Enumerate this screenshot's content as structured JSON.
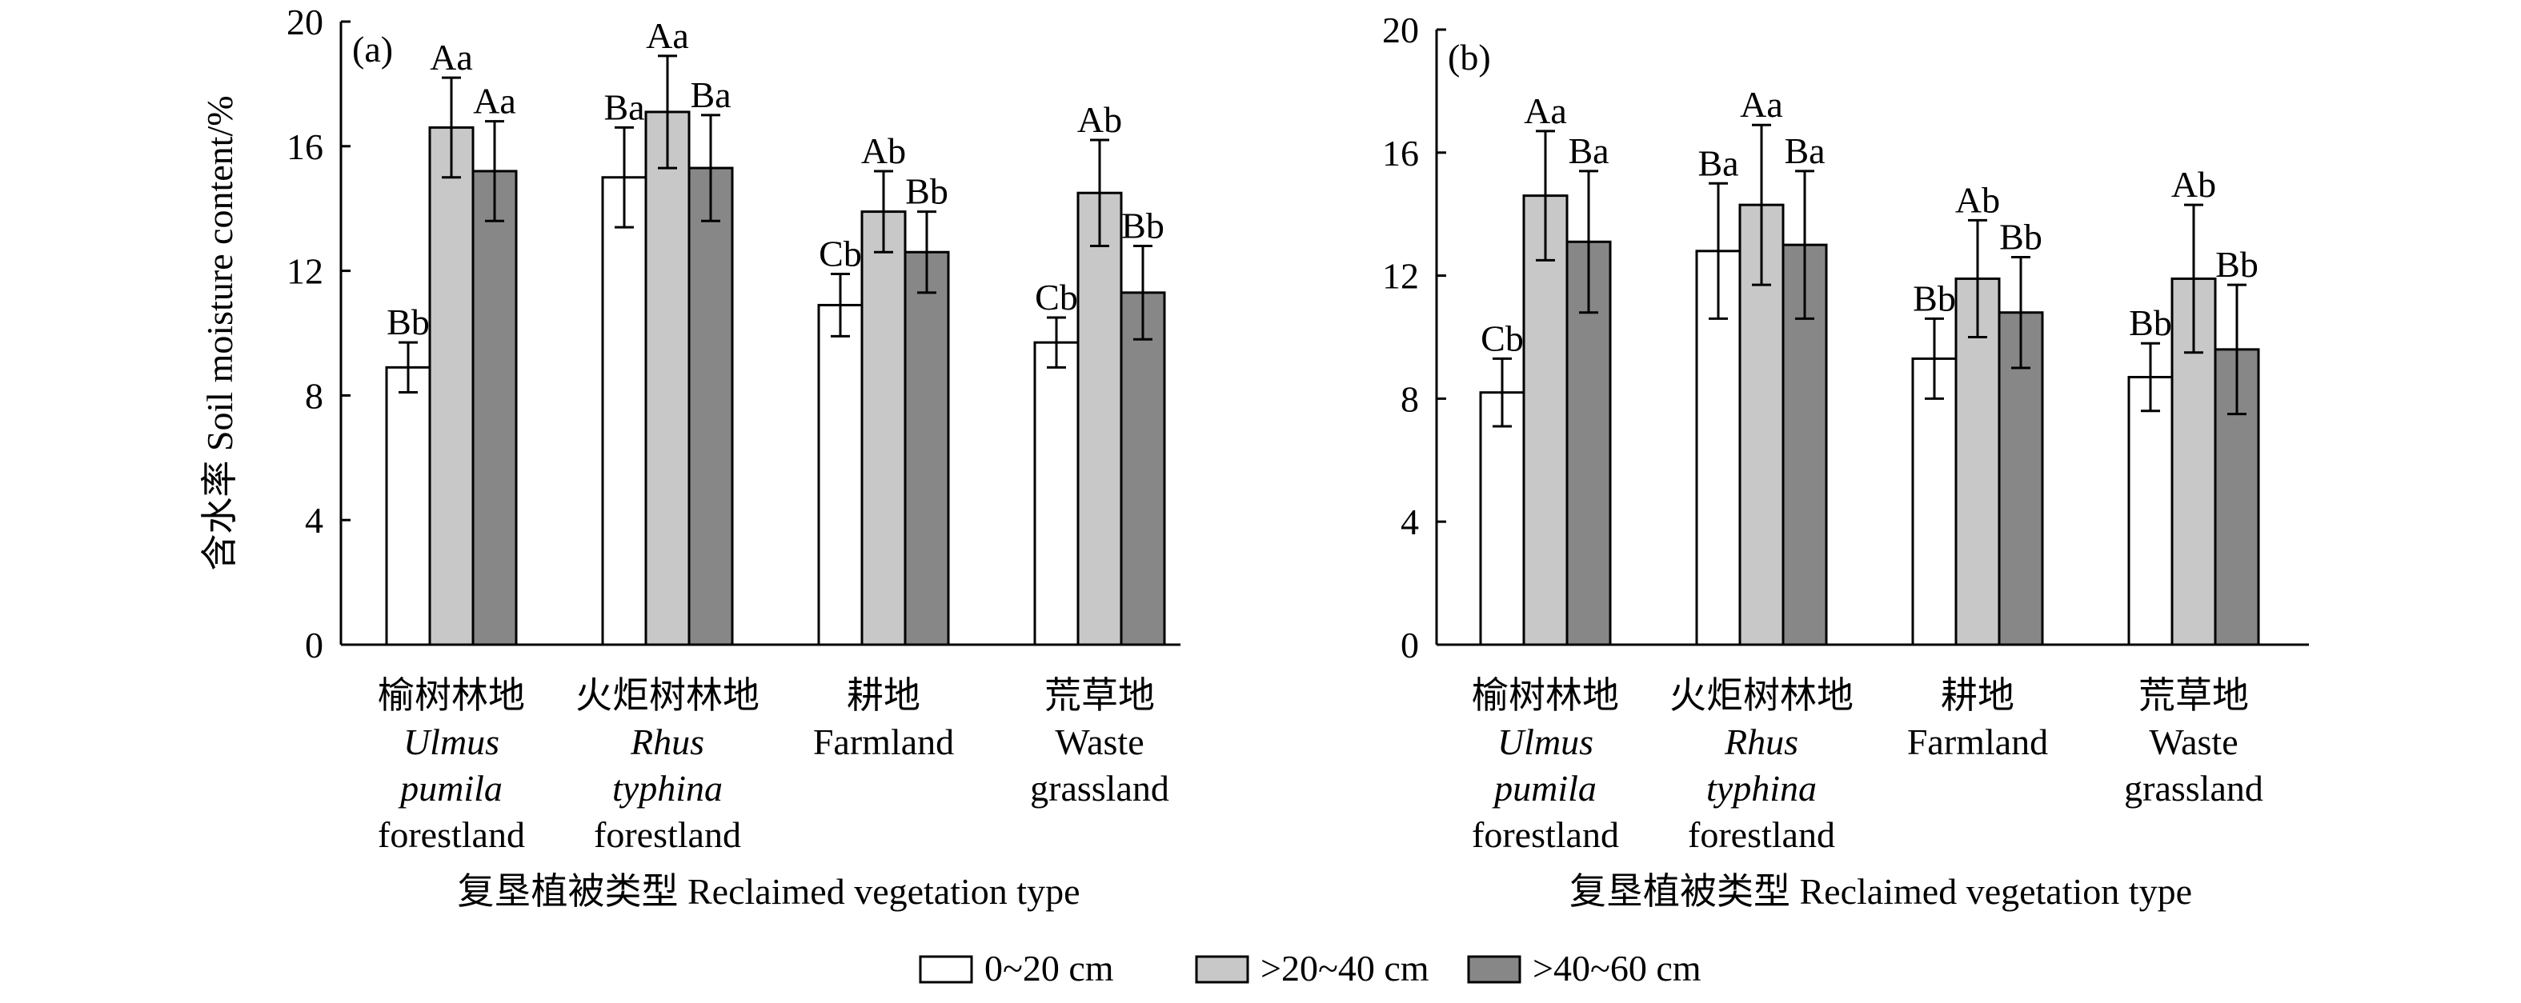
{
  "chart_data": [
    {
      "type": "bar",
      "panel_label": "(a)",
      "ylabel": "含水率 Soil moisture content/%",
      "xlabel": "复垦植被类型 Reclaimed vegetation type",
      "ylim": [
        0,
        20
      ],
      "yticks": [
        0,
        4,
        8,
        12,
        16,
        20
      ],
      "categories": [
        {
          "cn": "榆树林地",
          "en_lines": [
            "Ulmus",
            "pumila",
            "forestland"
          ],
          "italic_lines": [
            0,
            1
          ]
        },
        {
          "cn": "火炬树林地",
          "en_lines": [
            "Rhus",
            "typhina",
            "forestland"
          ],
          "italic_lines": [
            0,
            1
          ]
        },
        {
          "cn": "耕地",
          "en_lines": [
            "Farmland"
          ],
          "italic_lines": []
        },
        {
          "cn": "荒草地",
          "en_lines": [
            "Waste",
            "grassland"
          ],
          "italic_lines": []
        }
      ],
      "series": [
        {
          "name": "0~20 cm",
          "values": [
            8.9,
            15.0,
            10.9,
            9.7
          ],
          "errors": [
            0.8,
            1.6,
            1.0,
            0.8
          ],
          "labels": [
            "Bb",
            "Ba",
            "Cb",
            "Cb"
          ]
        },
        {
          "name": ">20~40 cm",
          "values": [
            16.6,
            17.1,
            13.9,
            14.5
          ],
          "errors": [
            1.6,
            1.8,
            1.3,
            1.7
          ],
          "labels": [
            "Aa",
            "Aa",
            "Ab",
            "Ab"
          ]
        },
        {
          "name": ">40~60 cm",
          "values": [
            15.2,
            15.3,
            12.6,
            11.3
          ],
          "errors": [
            1.6,
            1.7,
            1.3,
            1.5
          ],
          "labels": [
            "Aa",
            "Ba",
            "Bb",
            "Bb"
          ]
        }
      ]
    },
    {
      "type": "bar",
      "panel_label": "(b)",
      "ylabel": "",
      "xlabel": "复垦植被类型 Reclaimed vegetation type",
      "ylim": [
        0,
        20
      ],
      "yticks": [
        0,
        4,
        8,
        12,
        16,
        20
      ],
      "categories": [
        {
          "cn": "榆树林地",
          "en_lines": [
            "Ulmus",
            "pumila",
            "forestland"
          ],
          "italic_lines": [
            0,
            1
          ]
        },
        {
          "cn": "火炬树林地",
          "en_lines": [
            "Rhus",
            "typhina",
            "forestland"
          ],
          "italic_lines": [
            0,
            1
          ]
        },
        {
          "cn": "耕地",
          "en_lines": [
            "Farmland"
          ],
          "italic_lines": []
        },
        {
          "cn": "荒草地",
          "en_lines": [
            "Waste",
            "grassland"
          ],
          "italic_lines": []
        }
      ],
      "series": [
        {
          "name": "0~20 cm",
          "values": [
            8.2,
            12.8,
            9.3,
            8.7
          ],
          "errors": [
            1.1,
            2.2,
            1.3,
            1.1
          ],
          "labels": [
            "Cb",
            "Ba",
            "Bb",
            "Bb"
          ]
        },
        {
          "name": ">20~40 cm",
          "values": [
            14.6,
            14.3,
            11.9,
            11.9
          ],
          "errors": [
            2.1,
            2.6,
            1.9,
            2.4
          ],
          "labels": [
            "Aa",
            "Aa",
            "Ab",
            "Ab"
          ]
        },
        {
          "name": ">40~60 cm",
          "values": [
            13.1,
            13.0,
            10.8,
            9.6
          ],
          "errors": [
            2.3,
            2.4,
            1.8,
            2.1
          ],
          "labels": [
            "Ba",
            "Ba",
            "Bb",
            "Bb"
          ]
        }
      ]
    }
  ],
  "legend": [
    {
      "label": "0~20 cm",
      "color": "#ffffff"
    },
    {
      "label": ">20~40 cm",
      "color": "#c8c8c8"
    },
    {
      "label": ">40~60 cm",
      "color": "#878787"
    }
  ]
}
